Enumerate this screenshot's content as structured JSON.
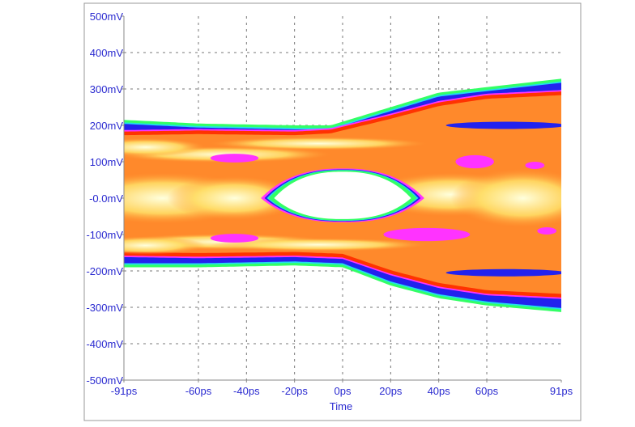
{
  "chart_data": {
    "type": "heatmap",
    "subtype": "eye-diagram",
    "title": "",
    "xlabel": "Time",
    "ylabel": "",
    "x_ticks": [
      "-91ps",
      "-60ps",
      "-40ps",
      "-20ps",
      "0ps",
      "20ps",
      "40ps",
      "60ps",
      "91ps"
    ],
    "x_tick_values_ps": [
      -91,
      -60,
      -40,
      -20,
      0,
      20,
      40,
      60,
      91
    ],
    "y_ticks": [
      "500mV",
      "400mV",
      "300mV",
      "200mV",
      "100mV",
      "-0.0mV",
      "-100mV",
      "-200mV",
      "-300mV",
      "-400mV",
      "-500mV"
    ],
    "y_tick_values_mV": [
      500,
      400,
      300,
      200,
      100,
      0,
      -100,
      -200,
      -300,
      -400,
      -500
    ],
    "xlim_ps": [
      -91,
      91
    ],
    "ylim_mV": [
      -500,
      500
    ],
    "grid": true,
    "grid_style": "dashed",
    "legend": "none",
    "density_colors": {
      "lowest": "#33ff66",
      "low": "#22ddee",
      "mid_low": "#2222ee",
      "mid": "#ff33ff",
      "high": "#ff3300",
      "higher": "#ff9933",
      "highest": "#ffffcc"
    },
    "envelope": {
      "upper_outer_mV": [
        [
          -91,
          215
        ],
        [
          -60,
          205
        ],
        [
          -20,
          200
        ],
        [
          -5,
          200
        ],
        [
          20,
          250
        ],
        [
          40,
          290
        ],
        [
          60,
          305
        ],
        [
          91,
          328
        ]
      ],
      "upper_inner_mV": [
        [
          -91,
          185
        ],
        [
          -60,
          188
        ],
        [
          -20,
          185
        ],
        [
          -5,
          190
        ],
        [
          20,
          230
        ],
        [
          40,
          265
        ],
        [
          60,
          285
        ],
        [
          91,
          295
        ]
      ],
      "lower_inner_mV": [
        [
          -91,
          -160
        ],
        [
          -60,
          -163
        ],
        [
          -20,
          -160
        ],
        [
          0,
          -165
        ],
        [
          20,
          -210
        ],
        [
          40,
          -245
        ],
        [
          60,
          -265
        ],
        [
          91,
          -275
        ]
      ],
      "lower_outer_mV": [
        [
          -91,
          -190
        ],
        [
          -60,
          -190
        ],
        [
          -20,
          -185
        ],
        [
          0,
          -190
        ],
        [
          20,
          -240
        ],
        [
          40,
          -275
        ],
        [
          60,
          -295
        ],
        [
          91,
          -313
        ]
      ]
    },
    "eye_opening": {
      "center_ps": 0,
      "center_mV": 0,
      "left_ps": -30,
      "right_ps": 30,
      "top_mV": 75,
      "bottom_mV": -60
    }
  }
}
